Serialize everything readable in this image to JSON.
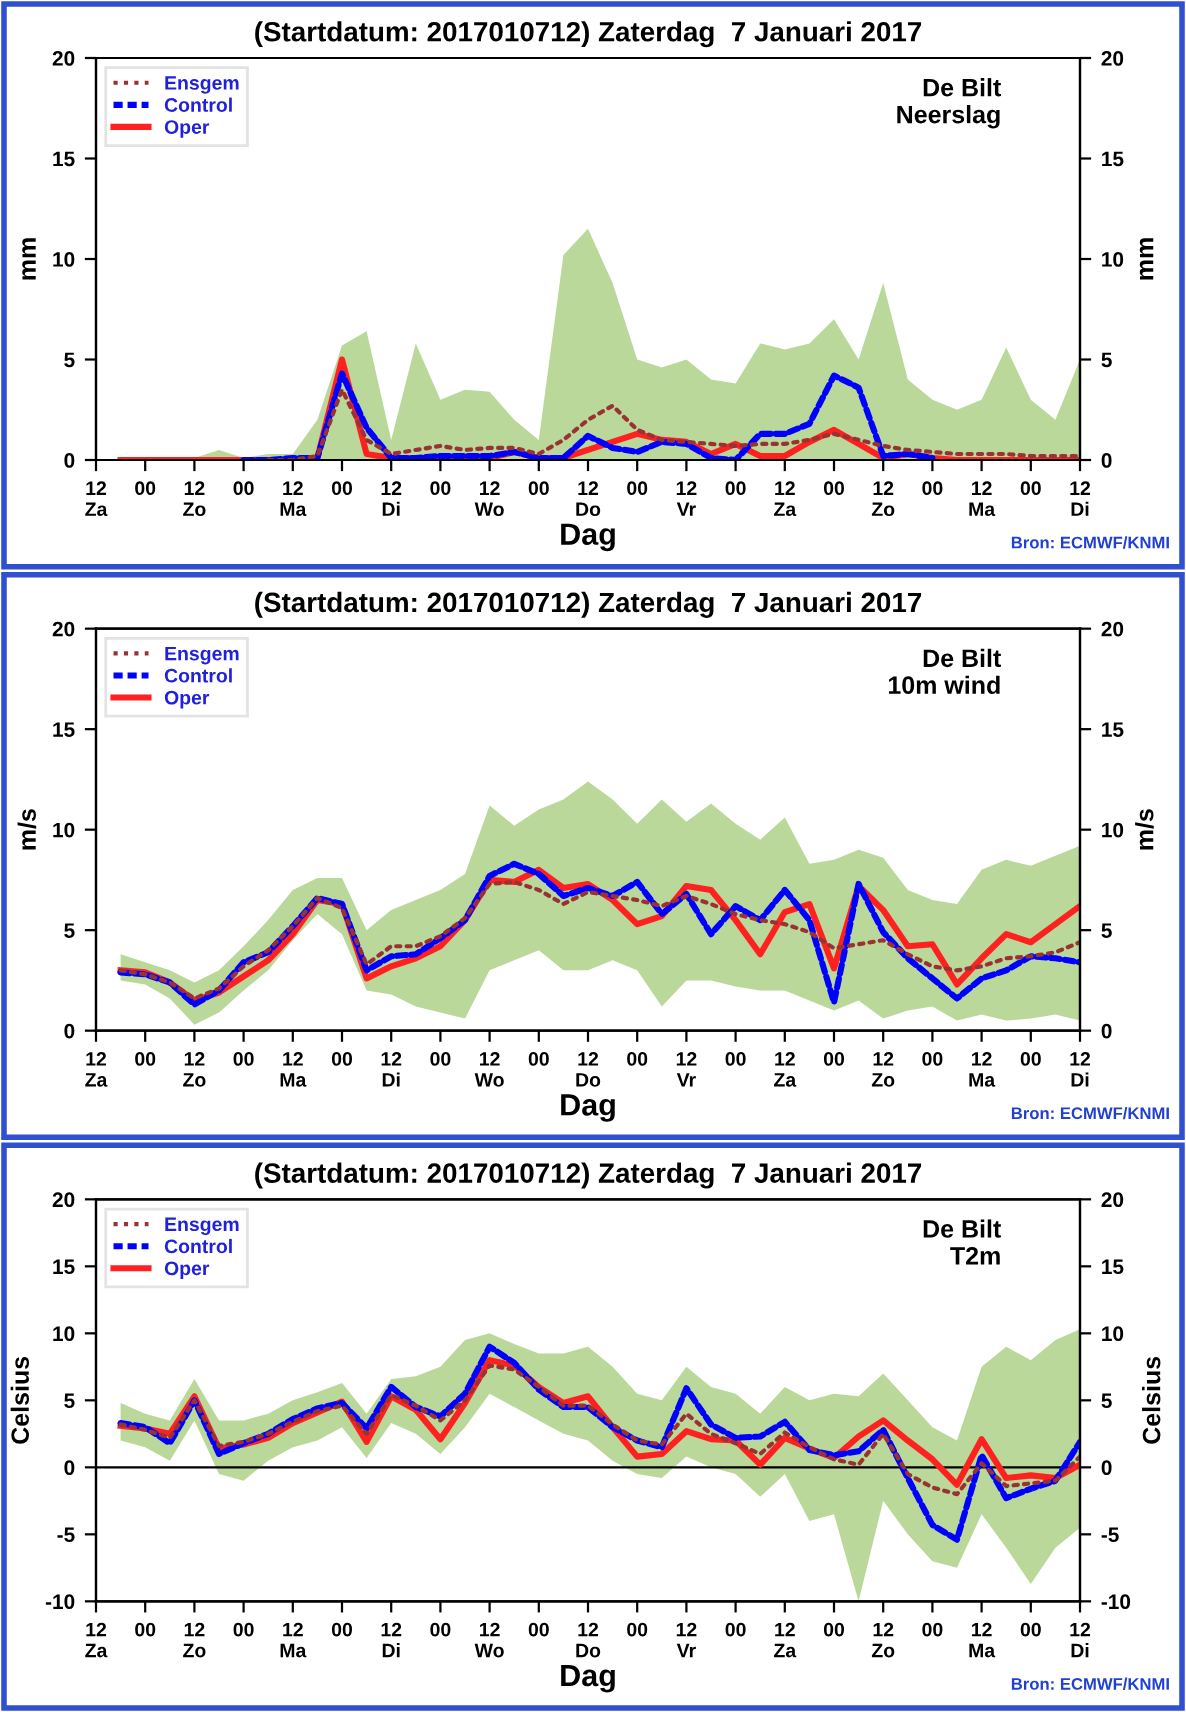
{
  "chart_data": [
    {
      "type": "line",
      "title": "(Startdatum: 2017010712) Zaterdag  7 Januari 2017",
      "xlabel": "Dag",
      "ylabel": "mm",
      "y2label": "mm",
      "annotations": [
        "De Bilt\nNeerslag",
        "Bron: ECMWF/KNMI"
      ],
      "x": [
        "2017-01-07T18:00",
        "2017-01-08T00:00",
        "2017-01-08T06:00",
        "2017-01-08T12:00",
        "2017-01-08T18:00",
        "2017-01-09T00:00",
        "2017-01-09T06:00",
        "2017-01-09T12:00",
        "2017-01-09T18:00",
        "2017-01-10T00:00",
        "2017-01-10T06:00",
        "2017-01-10T12:00",
        "2017-01-10T18:00",
        "2017-01-11T00:00",
        "2017-01-11T06:00",
        "2017-01-11T12:00",
        "2017-01-11T18:00",
        "2017-01-12T00:00",
        "2017-01-12T06:00",
        "2017-01-12T12:00",
        "2017-01-12T18:00",
        "2017-01-13T00:00",
        "2017-01-13T06:00",
        "2017-01-13T12:00",
        "2017-01-13T18:00",
        "2017-01-14T00:00",
        "2017-01-14T06:00",
        "2017-01-14T12:00",
        "2017-01-14T18:00",
        "2017-01-15T00:00",
        "2017-01-15T06:00",
        "2017-01-15T12:00",
        "2017-01-15T18:00",
        "2017-01-16T00:00",
        "2017-01-16T06:00",
        "2017-01-16T12:00",
        "2017-01-16T18:00",
        "2017-01-17T00:00",
        "2017-01-17T06:00",
        "2017-01-17T12:00"
      ],
      "xlim": [
        "2017-01-07T12:00",
        "2017-01-17T12:00"
      ],
      "xticks": [
        {
          "value": "2017-01-07T12:00",
          "label": "12\nZa"
        },
        {
          "value": "2017-01-08T00:00",
          "label": "00"
        },
        {
          "value": "2017-01-08T12:00",
          "label": "12\nZo"
        },
        {
          "value": "2017-01-09T00:00",
          "label": "00"
        },
        {
          "value": "2017-01-09T12:00",
          "label": "12\nMa"
        },
        {
          "value": "2017-01-10T00:00",
          "label": "00"
        },
        {
          "value": "2017-01-10T12:00",
          "label": "12\nDi"
        },
        {
          "value": "2017-01-11T00:00",
          "label": "00"
        },
        {
          "value": "2017-01-11T12:00",
          "label": "12\nWo"
        },
        {
          "value": "2017-01-12T00:00",
          "label": "00"
        },
        {
          "value": "2017-01-12T12:00",
          "label": "12\nDo"
        },
        {
          "value": "2017-01-13T00:00",
          "label": "00"
        },
        {
          "value": "2017-01-13T12:00",
          "label": "12\nVr"
        },
        {
          "value": "2017-01-14T00:00",
          "label": "00"
        },
        {
          "value": "2017-01-14T12:00",
          "label": "12\nZa"
        },
        {
          "value": "2017-01-15T00:00",
          "label": "00"
        },
        {
          "value": "2017-01-15T12:00",
          "label": "12\nZo"
        },
        {
          "value": "2017-01-16T00:00",
          "label": "00"
        },
        {
          "value": "2017-01-16T12:00",
          "label": "12\nMa"
        },
        {
          "value": "2017-01-17T00:00",
          "label": "00"
        },
        {
          "value": "2017-01-17T12:00",
          "label": "12\nDi"
        }
      ],
      "ylim": [
        0,
        20
      ],
      "yticks": [
        0,
        5,
        10,
        15,
        20
      ],
      "y2lim": [
        0,
        20
      ],
      "y2ticks": [
        0,
        5,
        10,
        15,
        20
      ],
      "legend": "top left",
      "grid": false,
      "series": [
        {
          "name": "Ensgem",
          "color": "#993333",
          "line_style": "dotted",
          "values": [
            null,
            null,
            null,
            null,
            null,
            null,
            0,
            0,
            0.2,
            3.5,
            1.0,
            0.3,
            0.5,
            0.7,
            0.5,
            0.6,
            0.6,
            0.3,
            1.0,
            2.0,
            2.7,
            1.5,
            1.0,
            0.9,
            0.8,
            0.7,
            0.8,
            0.8,
            1.0,
            1.3,
            1.0,
            0.7,
            0.5,
            0.4,
            0.3,
            0.3,
            0.3,
            0.2,
            0.2,
            0.2
          ],
          "lower": [
            0,
            0,
            0,
            0,
            0,
            0,
            0,
            0,
            0,
            0,
            0,
            0,
            0,
            0,
            0,
            0,
            0,
            0,
            0,
            0,
            0,
            0,
            0,
            0,
            0,
            0,
            0,
            0,
            0,
            0,
            0,
            0,
            0,
            0,
            0,
            0,
            0,
            0,
            0,
            0
          ],
          "upper": [
            0,
            0,
            0,
            0.1,
            0.5,
            0.1,
            0.3,
            0.3,
            2,
            5.7,
            6.4,
            1,
            5.8,
            3,
            3.5,
            3.4,
            2,
            1,
            10.2,
            11.5,
            8.8,
            5,
            4.6,
            5,
            4,
            3.8,
            5.8,
            5.5,
            5.8,
            7,
            5,
            8.8,
            4,
            3,
            2.5,
            3,
            5.6,
            3,
            2,
            5
          ]
        },
        {
          "name": "Control",
          "color": "#0000ff",
          "line_style": "dashed",
          "values": [
            null,
            null,
            null,
            null,
            null,
            0,
            0,
            0.1,
            0.1,
            4.3,
            1.6,
            0.1,
            0.1,
            0.2,
            0.2,
            0.2,
            0.4,
            0.1,
            0.1,
            1.2,
            0.6,
            0.4,
            0.9,
            0.8,
            0.1,
            0,
            1.3,
            1.3,
            1.8,
            4.2,
            3.6,
            0.2,
            0.3,
            0.1,
            null,
            null,
            null,
            null,
            null,
            null
          ]
        },
        {
          "name": "Oper",
          "color": "#ff2020",
          "line_style": "solid",
          "values": [
            0,
            0,
            0,
            0,
            0,
            0,
            0,
            0,
            0.1,
            5.0,
            0.3,
            0.1,
            0.1,
            0.1,
            0.1,
            0.1,
            0.4,
            0.1,
            0.1,
            0.5,
            0.9,
            1.3,
            1.0,
            0.9,
            0.3,
            0.8,
            0.2,
            0.2,
            0.9,
            1.5,
            0.8,
            0.1,
            0.3,
            0.1,
            0,
            0,
            0,
            0,
            0,
            0
          ]
        }
      ]
    },
    {
      "type": "line",
      "title": "(Startdatum: 2017010712) Zaterdag  7 Januari 2017",
      "xlabel": "Dag",
      "ylabel": "m/s",
      "y2label": "m/s",
      "annotations": [
        "De Bilt\n 10m wind",
        "Bron: ECMWF/KNMI"
      ],
      "x": [
        "2017-01-07T18:00",
        "2017-01-08T00:00",
        "2017-01-08T06:00",
        "2017-01-08T12:00",
        "2017-01-08T18:00",
        "2017-01-09T00:00",
        "2017-01-09T06:00",
        "2017-01-09T12:00",
        "2017-01-09T18:00",
        "2017-01-10T00:00",
        "2017-01-10T06:00",
        "2017-01-10T12:00",
        "2017-01-10T18:00",
        "2017-01-11T00:00",
        "2017-01-11T06:00",
        "2017-01-11T12:00",
        "2017-01-11T18:00",
        "2017-01-12T00:00",
        "2017-01-12T06:00",
        "2017-01-12T12:00",
        "2017-01-12T18:00",
        "2017-01-13T00:00",
        "2017-01-13T06:00",
        "2017-01-13T12:00",
        "2017-01-13T18:00",
        "2017-01-14T00:00",
        "2017-01-14T06:00",
        "2017-01-14T12:00",
        "2017-01-14T18:00",
        "2017-01-15T00:00",
        "2017-01-15T06:00",
        "2017-01-15T12:00",
        "2017-01-15T18:00",
        "2017-01-16T00:00",
        "2017-01-16T06:00",
        "2017-01-16T12:00",
        "2017-01-16T18:00",
        "2017-01-17T00:00",
        "2017-01-17T06:00",
        "2017-01-17T12:00"
      ],
      "xlim": [
        "2017-01-07T12:00",
        "2017-01-17T12:00"
      ],
      "xticks": [
        {
          "value": "2017-01-07T12:00",
          "label": "12\nZa"
        },
        {
          "value": "2017-01-08T00:00",
          "label": "00"
        },
        {
          "value": "2017-01-08T12:00",
          "label": "12\nZo"
        },
        {
          "value": "2017-01-09T00:00",
          "label": "00"
        },
        {
          "value": "2017-01-09T12:00",
          "label": "12\nMa"
        },
        {
          "value": "2017-01-10T00:00",
          "label": "00"
        },
        {
          "value": "2017-01-10T12:00",
          "label": "12\nDi"
        },
        {
          "value": "2017-01-11T00:00",
          "label": "00"
        },
        {
          "value": "2017-01-11T12:00",
          "label": "12\nWo"
        },
        {
          "value": "2017-01-12T00:00",
          "label": "00"
        },
        {
          "value": "2017-01-12T12:00",
          "label": "12\nDo"
        },
        {
          "value": "2017-01-13T00:00",
          "label": "00"
        },
        {
          "value": "2017-01-13T12:00",
          "label": "12\nVr"
        },
        {
          "value": "2017-01-14T00:00",
          "label": "00"
        },
        {
          "value": "2017-01-14T12:00",
          "label": "12\nZa"
        },
        {
          "value": "2017-01-15T00:00",
          "label": "00"
        },
        {
          "value": "2017-01-15T12:00",
          "label": "12\nZo"
        },
        {
          "value": "2017-01-16T00:00",
          "label": "00"
        },
        {
          "value": "2017-01-16T12:00",
          "label": "12\nMa"
        },
        {
          "value": "2017-01-17T00:00",
          "label": "00"
        },
        {
          "value": "2017-01-17T12:00",
          "label": "12\nDi"
        }
      ],
      "ylim": [
        0,
        20
      ],
      "yticks": [
        0,
        5,
        10,
        15,
        20
      ],
      "y2lim": [
        0,
        20
      ],
      "y2ticks": [
        0,
        5,
        10,
        15,
        20
      ],
      "legend": "top left",
      "grid": false,
      "series": [
        {
          "name": "Ensgem",
          "color": "#993333",
          "line_style": "dotted",
          "values": [
            3.0,
            2.8,
            2.4,
            1.6,
            2.1,
            3.2,
            4.0,
            5.2,
            6.6,
            6.1,
            3.3,
            4.2,
            4.2,
            4.7,
            5.6,
            7.3,
            7.4,
            7.0,
            6.3,
            6.9,
            6.7,
            6.5,
            6.2,
            6.7,
            6.3,
            5.8,
            5.5,
            5.3,
            4.9,
            4.1,
            4.3,
            4.5,
            3.8,
            3.2,
            3.0,
            3.2,
            3.6,
            3.7,
            3.9,
            4.4
          ],
          "lower": [
            2.5,
            2.3,
            1.6,
            0.3,
            0.9,
            2.0,
            3.0,
            4.5,
            5.8,
            4.8,
            2.0,
            1.8,
            1.2,
            0.9,
            0.6,
            3.0,
            3.5,
            4.0,
            3.0,
            3.0,
            3.5,
            3.0,
            1.2,
            2.5,
            2.5,
            2.2,
            2.0,
            2.0,
            1.5,
            1.0,
            1.5,
            0.6,
            1.0,
            1.2,
            0.5,
            0.8,
            0.5,
            0.6,
            0.8,
            0.5
          ],
          "upper": [
            3.8,
            3.4,
            3.0,
            2.4,
            3.0,
            4.2,
            5.5,
            7.0,
            7.6,
            7.6,
            5.0,
            6.0,
            6.5,
            7.0,
            7.8,
            11.2,
            10.2,
            11.0,
            11.5,
            12.4,
            11.5,
            10.3,
            11.5,
            10.4,
            11.3,
            10.3,
            9.5,
            10.6,
            8.3,
            8.5,
            9.0,
            8.6,
            7.0,
            6.5,
            6.3,
            8.0,
            8.5,
            8.2,
            8.7,
            9.2
          ]
        },
        {
          "name": "Control",
          "color": "#0000ff",
          "line_style": "dashed",
          "values": [
            2.9,
            2.8,
            2.4,
            1.3,
            2.0,
            3.4,
            3.9,
            5.2,
            6.6,
            6.3,
            3.0,
            3.7,
            3.8,
            4.6,
            5.5,
            7.7,
            8.3,
            7.8,
            6.7,
            7.1,
            6.7,
            7.4,
            5.8,
            6.8,
            4.8,
            6.2,
            5.5,
            7.0,
            5.5,
            1.4,
            7.3,
            4.9,
            3.6,
            2.6,
            1.6,
            2.6,
            3.0,
            3.7,
            3.6,
            3.4
          ]
        },
        {
          "name": "Oper",
          "color": "#ff2020",
          "line_style": "solid",
          "values": [
            3.0,
            2.9,
            2.4,
            1.5,
            1.9,
            2.7,
            3.5,
            4.8,
            6.5,
            6.3,
            2.6,
            3.2,
            3.6,
            4.2,
            5.5,
            7.5,
            7.4,
            8.0,
            7.1,
            7.3,
            6.5,
            5.3,
            5.7,
            7.2,
            7.0,
            5.5,
            3.8,
            5.9,
            6.3,
            3.1,
            7.2,
            6.0,
            4.2,
            4.3,
            2.3,
            3.6,
            4.8,
            4.4,
            5.3,
            6.2
          ]
        }
      ]
    },
    {
      "type": "line",
      "title": "(Startdatum: 2017010712) Zaterdag  7 Januari 2017",
      "xlabel": "Dag",
      "ylabel": "Celsius",
      "y2label": "Celsius",
      "annotations": [
        "De Bilt\n   T2m",
        "Bron: ECMWF/KNMI"
      ],
      "x": [
        "2017-01-07T18:00",
        "2017-01-08T00:00",
        "2017-01-08T06:00",
        "2017-01-08T12:00",
        "2017-01-08T18:00",
        "2017-01-09T00:00",
        "2017-01-09T06:00",
        "2017-01-09T12:00",
        "2017-01-09T18:00",
        "2017-01-10T00:00",
        "2017-01-10T06:00",
        "2017-01-10T12:00",
        "2017-01-10T18:00",
        "2017-01-11T00:00",
        "2017-01-11T06:00",
        "2017-01-11T12:00",
        "2017-01-11T18:00",
        "2017-01-12T00:00",
        "2017-01-12T06:00",
        "2017-01-12T12:00",
        "2017-01-12T18:00",
        "2017-01-13T00:00",
        "2017-01-13T06:00",
        "2017-01-13T12:00",
        "2017-01-13T18:00",
        "2017-01-14T00:00",
        "2017-01-14T06:00",
        "2017-01-14T12:00",
        "2017-01-14T18:00",
        "2017-01-15T00:00",
        "2017-01-15T06:00",
        "2017-01-15T12:00",
        "2017-01-15T18:00",
        "2017-01-16T00:00",
        "2017-01-16T06:00",
        "2017-01-16T12:00",
        "2017-01-16T18:00",
        "2017-01-17T00:00",
        "2017-01-17T06:00",
        "2017-01-17T12:00"
      ],
      "xlim": [
        "2017-01-07T12:00",
        "2017-01-17T12:00"
      ],
      "xticks": [
        {
          "value": "2017-01-07T12:00",
          "label": "12\nZa"
        },
        {
          "value": "2017-01-08T00:00",
          "label": "00"
        },
        {
          "value": "2017-01-08T12:00",
          "label": "12\nZo"
        },
        {
          "value": "2017-01-09T00:00",
          "label": "00"
        },
        {
          "value": "2017-01-09T12:00",
          "label": "12\nMa"
        },
        {
          "value": "2017-01-10T00:00",
          "label": "00"
        },
        {
          "value": "2017-01-10T12:00",
          "label": "12\nDi"
        },
        {
          "value": "2017-01-11T00:00",
          "label": "00"
        },
        {
          "value": "2017-01-11T12:00",
          "label": "12\nWo"
        },
        {
          "value": "2017-01-12T00:00",
          "label": "00"
        },
        {
          "value": "2017-01-12T12:00",
          "label": "12\nDo"
        },
        {
          "value": "2017-01-13T00:00",
          "label": "00"
        },
        {
          "value": "2017-01-13T12:00",
          "label": "12\nVr"
        },
        {
          "value": "2017-01-14T00:00",
          "label": "00"
        },
        {
          "value": "2017-01-14T12:00",
          "label": "12\nZa"
        },
        {
          "value": "2017-01-15T00:00",
          "label": "00"
        },
        {
          "value": "2017-01-15T12:00",
          "label": "12\nZo"
        },
        {
          "value": "2017-01-16T00:00",
          "label": "00"
        },
        {
          "value": "2017-01-16T12:00",
          "label": "12\nMa"
        },
        {
          "value": "2017-01-17T00:00",
          "label": "00"
        },
        {
          "value": "2017-01-17T12:00",
          "label": "12\nDi"
        }
      ],
      "ylim": [
        -10,
        20
      ],
      "yticks": [
        -10,
        -5,
        0,
        5,
        10,
        15,
        20
      ],
      "y2lim": [
        -10,
        20
      ],
      "y2ticks": [
        -10,
        -5,
        0,
        5,
        10,
        15,
        20
      ],
      "legend": "top left",
      "grid": false,
      "ref_lines": [
        {
          "axis": "y",
          "value": 0,
          "color": "#000000"
        }
      ],
      "series": [
        {
          "name": "Ensgem",
          "color": "#993333",
          "line_style": "dotted",
          "values": [
            3.2,
            2.8,
            2.2,
            5.0,
            1.6,
            1.9,
            2.5,
            3.4,
            4.2,
            4.6,
            2.5,
            5.4,
            4.6,
            3.5,
            5.0,
            7.6,
            7.3,
            6.0,
            4.6,
            4.6,
            3.2,
            2.0,
            1.7,
            4.0,
            2.5,
            1.8,
            1.0,
            2.6,
            1.5,
            0.6,
            0.2,
            2.5,
            -0.5,
            -1.5,
            -2.0,
            0.3,
            -1.4,
            -1.2,
            -1.0,
            0.8
          ],
          "lower": [
            2.0,
            1.5,
            0.5,
            3.5,
            -0.5,
            -1.0,
            0.5,
            1.5,
            2.0,
            3.0,
            0.7,
            3.3,
            2.5,
            1.0,
            3.0,
            5.5,
            4.5,
            3.5,
            2.5,
            2.0,
            0.5,
            -0.5,
            -0.8,
            0.8,
            0,
            -0.5,
            -2.2,
            -0.5,
            -4.0,
            -3.5,
            -10.0,
            -2.5,
            -5.0,
            -7.0,
            -7.5,
            -3.5,
            -6.0,
            -8.7,
            -6.0,
            -4.5
          ],
          "upper": [
            4.8,
            4.0,
            3.5,
            6.6,
            3.5,
            3.5,
            4.0,
            5.0,
            5.6,
            6.3,
            4.0,
            6.6,
            6.8,
            7.5,
            9.5,
            10.0,
            9.2,
            8.5,
            8.5,
            9.0,
            7.5,
            5.5,
            5.0,
            7.5,
            6.0,
            5.5,
            4.0,
            6.0,
            5.0,
            5.5,
            5.3,
            7.0,
            5.0,
            3.0,
            2.0,
            7.5,
            9.0,
            8.0,
            9.5,
            10.3
          ]
        },
        {
          "name": "Control",
          "color": "#0000ff",
          "line_style": "dashed",
          "values": [
            3.3,
            3.0,
            1.8,
            5.0,
            1.0,
            1.8,
            2.5,
            3.6,
            4.4,
            4.8,
            2.9,
            6.0,
            4.5,
            3.8,
            5.5,
            9.0,
            7.8,
            5.8,
            4.5,
            4.5,
            3.0,
            2.0,
            1.5,
            5.9,
            3.2,
            2.2,
            2.3,
            3.4,
            1.3,
            0.9,
            1.2,
            2.8,
            -0.8,
            -4.3,
            -5.4,
            0.9,
            -2.3,
            -1.6,
            -1.0,
            1.9
          ]
        },
        {
          "name": "Oper",
          "color": "#ff2020",
          "line_style": "solid",
          "values": [
            3.1,
            2.9,
            2.5,
            5.3,
            1.4,
            1.7,
            2.2,
            3.3,
            4.1,
            4.9,
            1.9,
            5.3,
            4.3,
            2.1,
            4.8,
            8.0,
            7.6,
            6.0,
            4.8,
            5.3,
            3.0,
            0.8,
            1.0,
            2.7,
            2.1,
            2.0,
            0.2,
            2.2,
            1.4,
            0.7,
            2.3,
            3.5,
            2.0,
            0.6,
            -1.3,
            2.1,
            -0.8,
            -0.6,
            -0.8,
            0.2
          ]
        }
      ]
    }
  ]
}
